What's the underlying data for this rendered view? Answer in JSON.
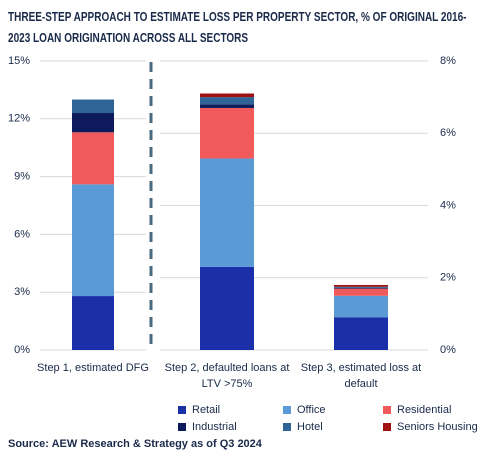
{
  "title": "THREE-STEP APPROACH TO ESTIMATE LOSS PER PROPERTY SECTOR, % OF ORIGINAL 2016-2023 LOAN ORIGINATION ACROSS ALL SECTORS",
  "source": "Source: AEW Research & Strategy as of Q3 2024",
  "chart_data": [
    {
      "type": "stacked-bar",
      "categories": [
        "Step 1, estimated DFG"
      ],
      "ylim": [
        0,
        15
      ],
      "yticks": [
        {
          "value": 0,
          "label": "0%"
        },
        {
          "value": 3,
          "label": "3%"
        },
        {
          "value": 6,
          "label": "6%"
        },
        {
          "value": 9,
          "label": "9%"
        },
        {
          "value": 12,
          "label": "12%"
        },
        {
          "value": 15,
          "label": "15%"
        }
      ],
      "grid": true,
      "series": [
        {
          "name": "Retail",
          "color": "#1b2fa8",
          "values": [
            2.8
          ]
        },
        {
          "name": "Office",
          "color": "#5b9bd5",
          "values": [
            5.8
          ]
        },
        {
          "name": "Residential",
          "color": "#f05a5a",
          "values": [
            2.7
          ]
        },
        {
          "name": "Industrial",
          "color": "#0d1a5c",
          "values": [
            1.0
          ]
        },
        {
          "name": "Hotel",
          "color": "#2e6496",
          "values": [
            0.7
          ]
        },
        {
          "name": "Seniors Housing",
          "color": "#a01010",
          "values": [
            0
          ]
        }
      ]
    },
    {
      "type": "stacked-bar",
      "categories": [
        "Step 2, defaulted loans at LTV >75%",
        "Step 3, estimated loss at default"
      ],
      "ylim": [
        0,
        8
      ],
      "yticks": [
        {
          "value": 0,
          "label": "0%"
        },
        {
          "value": 2,
          "label": "2%"
        },
        {
          "value": 4,
          "label": "4%"
        },
        {
          "value": 6,
          "label": "6%"
        },
        {
          "value": 8,
          "label": "8%"
        }
      ],
      "grid": true,
      "series": [
        {
          "name": "Retail",
          "color": "#1b2fa8",
          "values": [
            2.3,
            0.9
          ]
        },
        {
          "name": "Office",
          "color": "#5b9bd5",
          "values": [
            3.0,
            0.6
          ]
        },
        {
          "name": "Residential",
          "color": "#f05a5a",
          "values": [
            1.4,
            0.2
          ]
        },
        {
          "name": "Industrial",
          "color": "#0d1a5c",
          "values": [
            0.1,
            0.02
          ]
        },
        {
          "name": "Hotel",
          "color": "#2e6496",
          "values": [
            0.2,
            0.03
          ]
        },
        {
          "name": "Seniors Housing",
          "color": "#a01010",
          "values": [
            0.1,
            0.05
          ]
        }
      ]
    }
  ]
}
